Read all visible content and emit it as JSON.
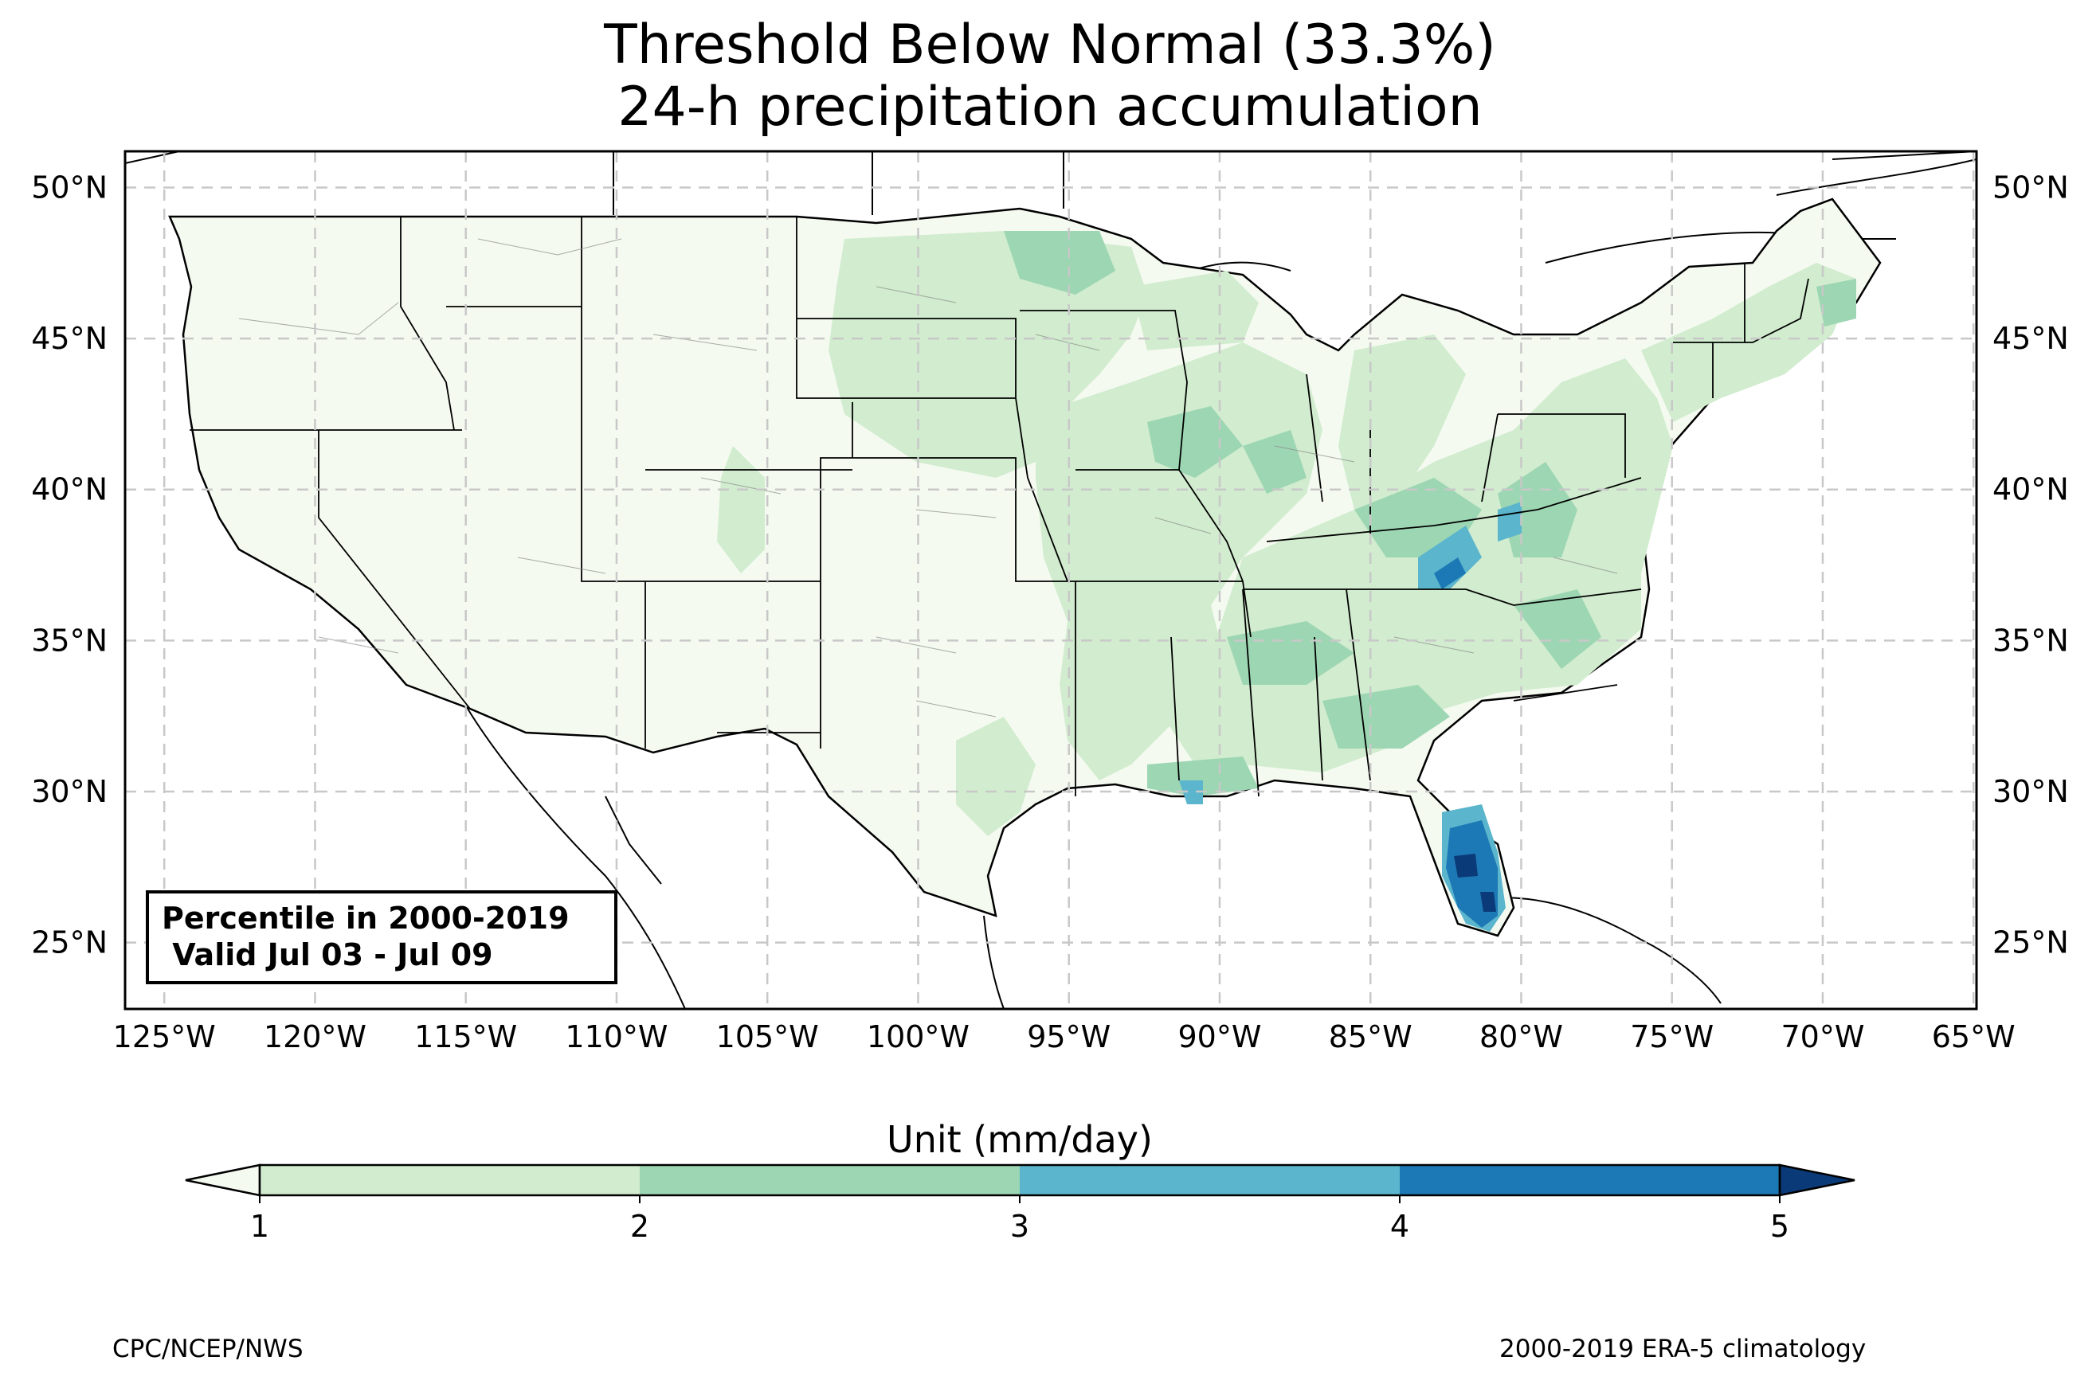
{
  "title": {
    "line1": "Threshold Below Normal (33.3%)",
    "line2": "24-h precipitation accumulation"
  },
  "map": {
    "lon_range": [
      -126.3,
      -64.9
    ],
    "lat_range": [
      22.8,
      51.2
    ],
    "lon_ticks": [
      "125°W",
      "120°W",
      "115°W",
      "110°W",
      "105°W",
      "100°W",
      "95°W",
      "90°W",
      "85°W",
      "80°W",
      "75°W",
      "70°W",
      "65°W"
    ],
    "lat_ticks": [
      "50°N",
      "45°N",
      "40°N",
      "35°N",
      "30°N",
      "25°N"
    ],
    "gridlines": "dashed",
    "land_color": "#f4faf0",
    "ocean_color": "#ffffff"
  },
  "info_box": {
    "line1": "Percentile in 2000-2019",
    "line2": " Valid Jul 03 - Jul 09"
  },
  "colorbar": {
    "label": "Unit (mm/day)",
    "ticks": [
      "1",
      "2",
      "3",
      "4",
      "5"
    ],
    "colors": [
      "#d1ecce",
      "#9dd6b3",
      "#5bb5cc",
      "#1d79b5",
      "#0b3a78"
    ],
    "under_color": "#f4faf0",
    "extend": "both"
  },
  "credits": {
    "left": "CPC/NCEP/NWS",
    "right": "2000-2019 ERA-5 climatology"
  }
}
